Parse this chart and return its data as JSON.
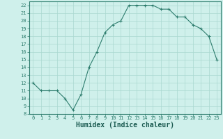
{
  "x": [
    0,
    1,
    2,
    3,
    4,
    5,
    6,
    7,
    8,
    9,
    10,
    11,
    12,
    13,
    14,
    15,
    16,
    17,
    18,
    19,
    20,
    21,
    22,
    23
  ],
  "y": [
    12,
    11,
    11,
    11,
    10,
    8.5,
    10.5,
    14,
    16,
    18.5,
    19.5,
    20,
    22,
    22,
    22,
    22,
    21.5,
    21.5,
    20.5,
    20.5,
    19.5,
    19,
    18,
    15
  ],
  "line_color": "#2e7d6e",
  "marker": "+",
  "marker_size": 3.5,
  "marker_linewidth": 0.8,
  "line_width": 0.8,
  "bg_color": "#cff0eb",
  "grid_color": "#aad8d0",
  "xlabel": "Humidex (Indice chaleur)",
  "ylim": [
    8,
    22.5
  ],
  "xlim": [
    -0.5,
    23.5
  ],
  "yticks": [
    8,
    9,
    10,
    11,
    12,
    13,
    14,
    15,
    16,
    17,
    18,
    19,
    20,
    21,
    22
  ],
  "xticks": [
    0,
    1,
    2,
    3,
    4,
    5,
    6,
    7,
    8,
    9,
    10,
    11,
    12,
    13,
    14,
    15,
    16,
    17,
    18,
    19,
    20,
    21,
    22,
    23
  ],
  "tick_label_fontsize": 5.0,
  "xlabel_fontsize": 7.0,
  "spine_color": "#2e7d6e"
}
